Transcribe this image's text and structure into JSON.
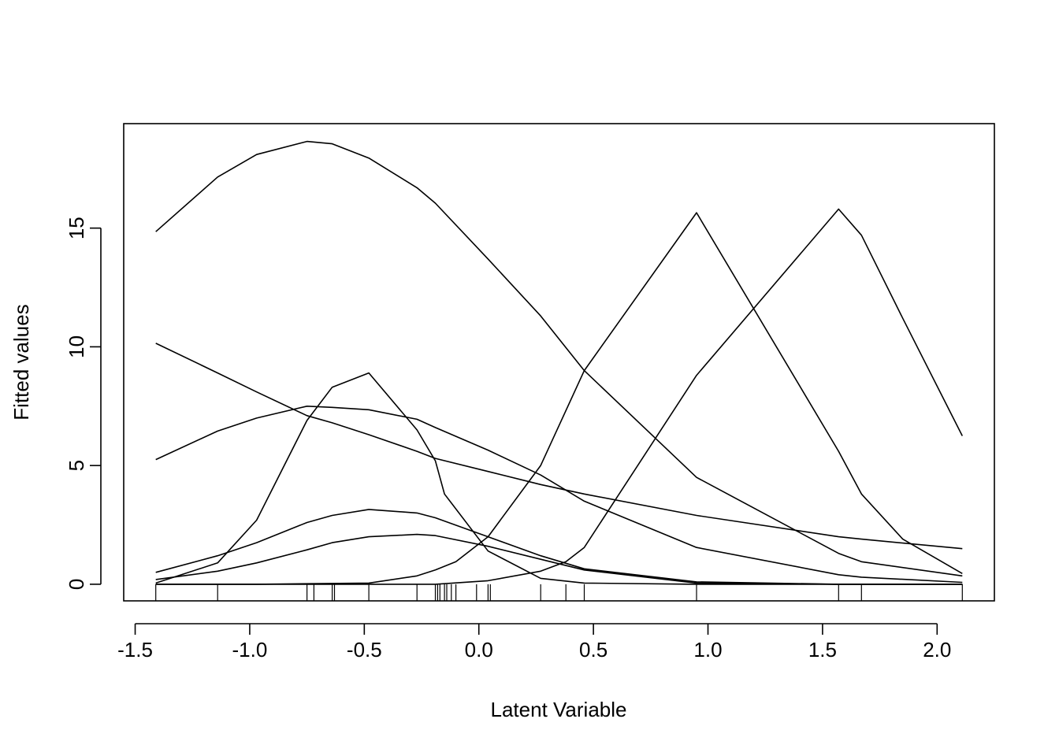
{
  "chart_data": {
    "type": "line",
    "title": "",
    "xlabel": "Latent Variable",
    "ylabel": "Fitted values",
    "xlim": [
      -1.55,
      2.25
    ],
    "ylim": [
      -0.7,
      19.4
    ],
    "xticks": [
      -1.5,
      -1.0,
      -0.5,
      0.0,
      0.5,
      1.0,
      1.5,
      2.0
    ],
    "xtick_labels": [
      "-1.5",
      "-1.0",
      "-0.5",
      "0.0",
      "0.5",
      "1.0",
      "1.5",
      "2.0"
    ],
    "yticks": [
      0,
      5,
      10,
      15
    ],
    "ytick_labels": [
      "0",
      "5",
      "10",
      "15"
    ],
    "grid": false,
    "legend": "none",
    "rug": [
      -1.41,
      -1.14,
      -0.75,
      -0.72,
      -0.64,
      -0.63,
      -0.48,
      -0.27,
      -0.19,
      -0.18,
      -0.17,
      -0.15,
      -0.14,
      -0.12,
      -0.1,
      -0.01,
      0.04,
      0.05,
      0.27,
      0.38,
      0.46,
      0.95,
      1.57,
      1.67,
      2.11
    ],
    "series": [
      {
        "x": [
          -1.41,
          -1.14,
          -0.97,
          -0.75,
          -0.64,
          -0.48,
          -0.27,
          -0.19,
          0.04,
          0.27,
          0.46,
          0.95,
          1.57,
          1.67,
          2.11
        ],
        "values": [
          14.85,
          17.15,
          18.1,
          18.65,
          18.55,
          17.95,
          16.7,
          16.05,
          13.7,
          11.3,
          9.0,
          4.5,
          1.3,
          0.95,
          0.35
        ]
      },
      {
        "x": [
          -1.41,
          -1.14,
          -0.97,
          -0.75,
          -0.64,
          -0.48,
          -0.27,
          -0.19,
          0.04,
          0.27,
          0.46,
          0.95,
          1.57,
          1.67,
          2.11
        ],
        "values": [
          10.15,
          8.9,
          8.1,
          7.1,
          6.8,
          6.3,
          5.6,
          5.3,
          4.75,
          4.2,
          3.8,
          2.9,
          2.0,
          1.9,
          1.5
        ]
      },
      {
        "x": [
          -1.41,
          -1.14,
          -0.97,
          -0.75,
          -0.64,
          -0.48,
          -0.27,
          -0.19,
          0.04,
          0.27,
          0.46,
          0.95,
          1.57,
          1.67,
          2.11
        ],
        "values": [
          5.25,
          6.45,
          7.0,
          7.5,
          7.45,
          7.35,
          6.95,
          6.6,
          5.65,
          4.6,
          3.5,
          1.55,
          0.4,
          0.3,
          0.08
        ]
      },
      {
        "x": [
          -1.41,
          -1.14,
          -0.97,
          -0.75,
          -0.64,
          -0.48,
          -0.27,
          -0.19,
          -0.15,
          0.04,
          0.27,
          0.46,
          0.95,
          1.57,
          1.67,
          2.11
        ],
        "values": [
          0.05,
          0.9,
          2.7,
          6.9,
          8.3,
          8.9,
          6.5,
          5.2,
          3.8,
          1.4,
          0.25,
          0.05,
          0.0,
          0.0,
          0.0,
          0.0
        ]
      },
      {
        "x": [
          -1.41,
          -1.14,
          -0.97,
          -0.75,
          -0.64,
          -0.48,
          -0.27,
          -0.19,
          0.04,
          0.27,
          0.46,
          0.95,
          1.57,
          1.67,
          2.11
        ],
        "values": [
          0.5,
          1.2,
          1.75,
          2.6,
          2.9,
          3.15,
          3.0,
          2.8,
          2.0,
          1.2,
          0.65,
          0.1,
          0.0,
          0.0,
          0.0
        ]
      },
      {
        "x": [
          -1.41,
          -1.14,
          -0.97,
          -0.75,
          -0.64,
          -0.48,
          -0.27,
          -0.19,
          0.04,
          0.27,
          0.46,
          0.95,
          1.57,
          1.67,
          2.11
        ],
        "values": [
          0.2,
          0.55,
          0.9,
          1.45,
          1.75,
          2.0,
          2.1,
          2.05,
          1.6,
          1.05,
          0.6,
          0.05,
          0.0,
          0.0,
          0.0
        ]
      },
      {
        "x": [
          -1.41,
          -0.97,
          -0.48,
          -0.27,
          -0.19,
          -0.1,
          0.04,
          0.27,
          0.46,
          0.95,
          1.57,
          1.67,
          1.85,
          2.11
        ],
        "values": [
          0.0,
          0.0,
          0.05,
          0.35,
          0.6,
          0.95,
          2.0,
          5.0,
          9.0,
          15.65,
          5.6,
          3.8,
          1.9,
          0.45
        ]
      },
      {
        "x": [
          -1.41,
          -0.97,
          -0.48,
          -0.27,
          -0.19,
          0.04,
          0.27,
          0.38,
          0.46,
          0.95,
          1.57,
          1.67,
          1.85,
          2.11
        ],
        "values": [
          0.0,
          0.0,
          0.0,
          0.0,
          0.0,
          0.15,
          0.55,
          0.95,
          1.55,
          8.8,
          15.8,
          14.7,
          11.2,
          6.25
        ]
      }
    ]
  }
}
